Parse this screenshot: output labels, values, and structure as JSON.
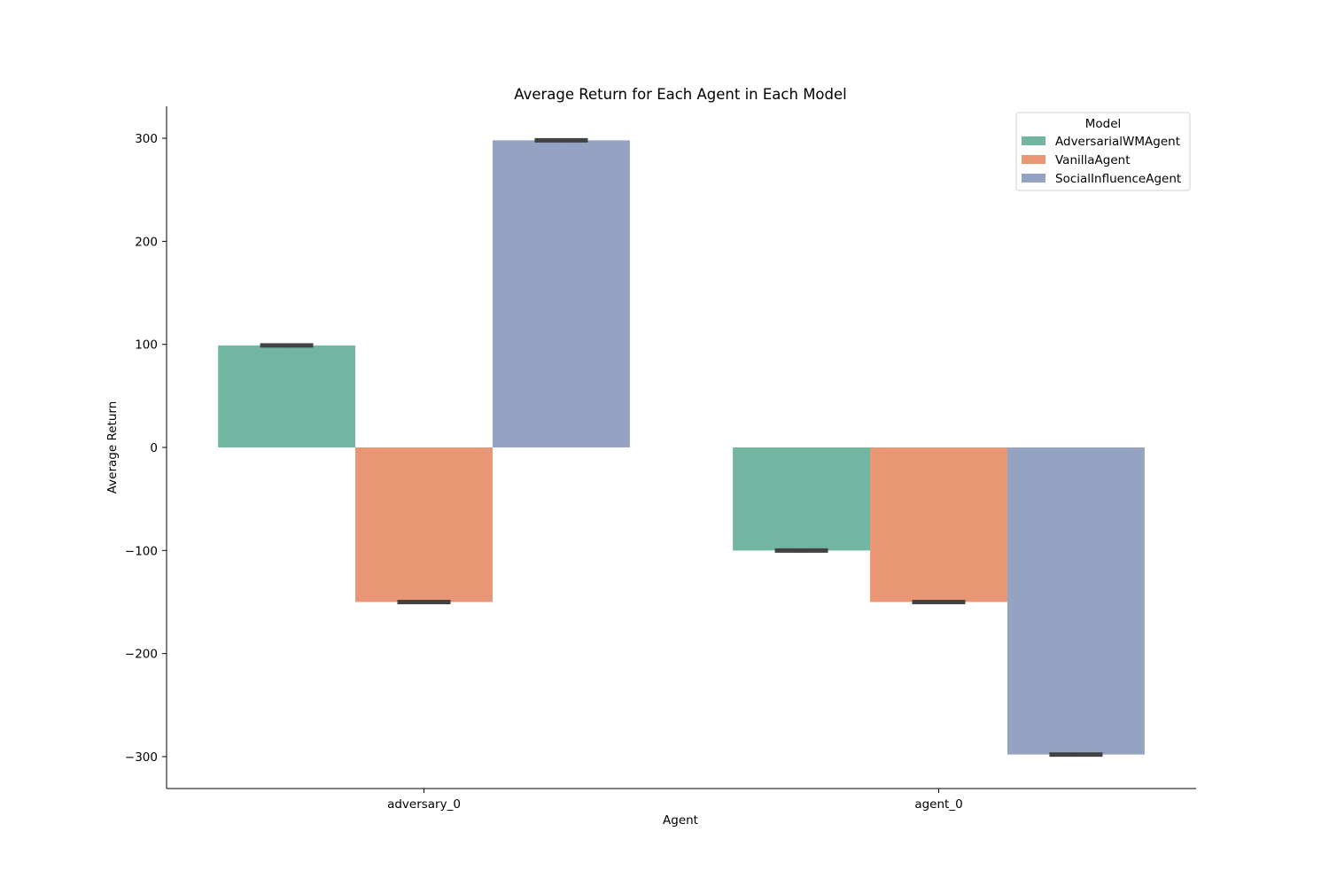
{
  "chart_data": {
    "type": "bar",
    "title": "Average Return for Each Agent in Each Model",
    "xlabel": "Agent",
    "ylabel": "Average Return",
    "categories": [
      "adversary_0",
      "agent_0"
    ],
    "series": [
      {
        "name": "AdversarialWMAgent",
        "values": [
          99,
          -100
        ],
        "err": [
          2,
          2
        ],
        "color": "#72b6a1"
      },
      {
        "name": "VanillaAgent",
        "values": [
          -150,
          -150
        ],
        "err": [
          2,
          2
        ],
        "color": "#e99675"
      },
      {
        "name": "SocialInfluenceAgent",
        "values": [
          298,
          -298
        ],
        "err": [
          2,
          2
        ],
        "color": "#95a3c3"
      }
    ],
    "ylim": [
      -331,
      331
    ],
    "yticks": [
      -300,
      -200,
      -100,
      0,
      100,
      200,
      300
    ],
    "ytick_labels": [
      "−300",
      "−200",
      "−100",
      "0",
      "100",
      "200",
      "300"
    ],
    "legend": {
      "title": "Model",
      "position": "top-right"
    },
    "grid": false,
    "errorbar_color": "#424242"
  }
}
